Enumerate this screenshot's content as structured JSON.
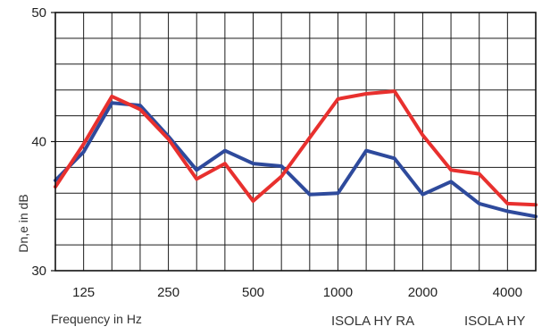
{
  "chart_data": {
    "type": "line",
    "title": "",
    "xlabel": "Frequency in Hz",
    "ylabel": "Dn,e in dB",
    "ylim": [
      30,
      50
    ],
    "grid": true,
    "x": [
      100,
      125,
      160,
      200,
      250,
      315,
      400,
      500,
      630,
      800,
      1000,
      1250,
      1600,
      2000,
      2500,
      3150,
      4000,
      5000
    ],
    "x_tick_labels": [
      "125",
      "250",
      "500",
      "1000",
      "2000",
      "4000"
    ],
    "y_tick_labels": [
      "30",
      "40",
      "50"
    ],
    "series": [
      {
        "name": "ISOLA HY RA",
        "color": "#e8302e",
        "values": [
          36.5,
          39.8,
          43.5,
          42.5,
          40.2,
          37.1,
          38.3,
          35.4,
          37.3,
          40.3,
          43.3,
          43.7,
          43.9,
          40.5,
          37.8,
          37.5,
          35.2,
          35.1
        ]
      },
      {
        "name": "ISOLA HY",
        "color": "#2e4a9c",
        "values": [
          37.0,
          39.2,
          43.0,
          42.8,
          40.4,
          37.8,
          39.3,
          38.3,
          38.1,
          35.9,
          36.0,
          39.3,
          38.7,
          35.9,
          36.9,
          35.2,
          34.6,
          34.2
        ]
      }
    ],
    "legend_position": "bottom-right"
  }
}
